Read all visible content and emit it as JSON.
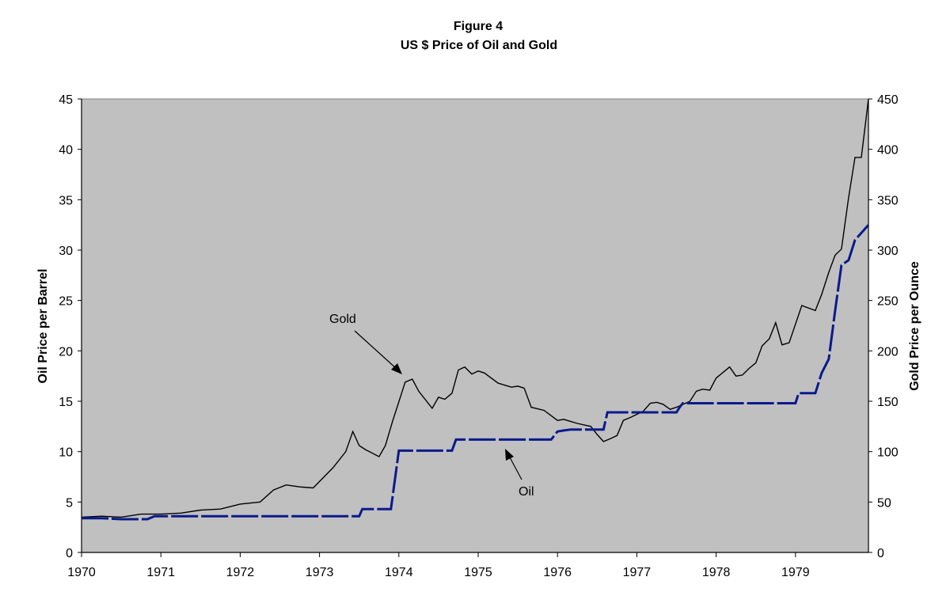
{
  "chart_data": {
    "type": "line",
    "figure_label": "Figure 4",
    "title": "US $ Price of Oil and Gold",
    "xlabel": "",
    "ylabel_left": "Oil Price per  Barrel",
    "ylabel_right": "Gold Price per Ounce",
    "xlim": [
      1970,
      1979.92
    ],
    "ylim_left": [
      0,
      45
    ],
    "ylim_right": [
      0,
      450
    ],
    "x_ticks": [
      "1970",
      "1971",
      "1972",
      "1973",
      "1974",
      "1975",
      "1976",
      "1977",
      "1978",
      "1979"
    ],
    "y_left_ticks": [
      "0",
      "5",
      "10",
      "15",
      "20",
      "25",
      "30",
      "35",
      "40",
      "45"
    ],
    "y_right_ticks": [
      "0",
      "50",
      "100",
      "150",
      "200",
      "250",
      "300",
      "350",
      "400",
      "450"
    ],
    "background_color": "#c0c0c0",
    "series": [
      {
        "name": "Gold",
        "axis": "right",
        "color": "#000000",
        "style": "solid",
        "x": [
          1970.0,
          1970.25,
          1970.5,
          1970.75,
          1971.0,
          1971.25,
          1971.5,
          1971.75,
          1972.0,
          1972.25,
          1972.42,
          1972.58,
          1972.75,
          1972.92,
          1973.17,
          1973.33,
          1973.42,
          1973.5,
          1973.58,
          1973.75,
          1973.83,
          1973.92,
          1974.08,
          1974.17,
          1974.25,
          1974.42,
          1974.5,
          1974.58,
          1974.67,
          1974.75,
          1974.83,
          1974.92,
          1975.0,
          1975.08,
          1975.25,
          1975.42,
          1975.5,
          1975.58,
          1975.67,
          1975.83,
          1976.0,
          1976.08,
          1976.25,
          1976.42,
          1976.5,
          1976.58,
          1976.67,
          1976.75,
          1976.83,
          1976.92,
          1977.08,
          1977.17,
          1977.25,
          1977.33,
          1977.42,
          1977.5,
          1977.67,
          1977.75,
          1977.83,
          1977.92,
          1978.0,
          1978.17,
          1978.25,
          1978.33,
          1978.42,
          1978.5,
          1978.58,
          1978.67,
          1978.75,
          1978.83,
          1978.92,
          1979.08,
          1979.25,
          1979.33,
          1979.42,
          1979.5,
          1979.58,
          1979.67,
          1979.75,
          1979.83,
          1979.92
        ],
        "values": [
          35,
          36,
          35,
          38,
          38,
          39,
          42,
          43,
          48,
          50,
          62,
          67,
          65,
          64,
          84,
          100,
          120,
          106,
          102,
          95,
          106,
          130,
          169,
          172,
          160,
          143,
          154,
          152,
          158,
          181,
          184,
          177,
          180,
          178,
          168,
          164,
          165,
          163,
          144,
          141,
          131,
          132,
          128,
          125,
          117,
          110,
          113,
          116,
          131,
          134,
          140,
          148,
          149,
          147,
          142,
          144,
          150,
          160,
          162,
          161,
          173,
          184,
          175,
          176,
          183,
          188,
          205,
          212,
          228,
          206,
          208,
          245,
          240,
          256,
          278,
          295,
          301,
          352,
          392,
          392,
          450
        ]
      },
      {
        "name": "Oil",
        "axis": "left",
        "color": "#0a1a8c",
        "style": "dashed",
        "x": [
          1970.0,
          1970.25,
          1970.5,
          1970.83,
          1970.92,
          1971.25,
          1971.5,
          1971.75,
          1972.0,
          1972.5,
          1973.0,
          1973.5,
          1973.54,
          1973.75,
          1973.9,
          1974.0,
          1974.5,
          1974.67,
          1974.72,
          1975.0,
          1975.5,
          1975.92,
          1976.0,
          1976.08,
          1976.17,
          1976.5,
          1976.58,
          1976.63,
          1977.0,
          1977.5,
          1977.54,
          1977.58,
          1977.67,
          1977.75,
          1978.0,
          1978.5,
          1979.0,
          1979.04,
          1979.25,
          1979.33,
          1979.42,
          1979.5,
          1979.58,
          1979.67,
          1979.75,
          1979.92
        ],
        "values": [
          3.4,
          3.4,
          3.3,
          3.3,
          3.6,
          3.6,
          3.6,
          3.6,
          3.6,
          3.6,
          3.6,
          3.6,
          4.3,
          4.3,
          4.3,
          10.1,
          10.1,
          10.1,
          11.2,
          11.2,
          11.2,
          11.2,
          12.0,
          12.1,
          12.2,
          12.2,
          12.2,
          13.9,
          13.9,
          13.9,
          14.4,
          14.8,
          14.8,
          14.8,
          14.8,
          14.8,
          14.8,
          15.8,
          15.8,
          17.8,
          19.2,
          24.0,
          28.5,
          29.0,
          31.0,
          32.5
        ]
      }
    ],
    "annotations": [
      {
        "text": "Gold",
        "target_series": "Gold"
      },
      {
        "text": "Oil",
        "target_series": "Oil"
      }
    ]
  }
}
